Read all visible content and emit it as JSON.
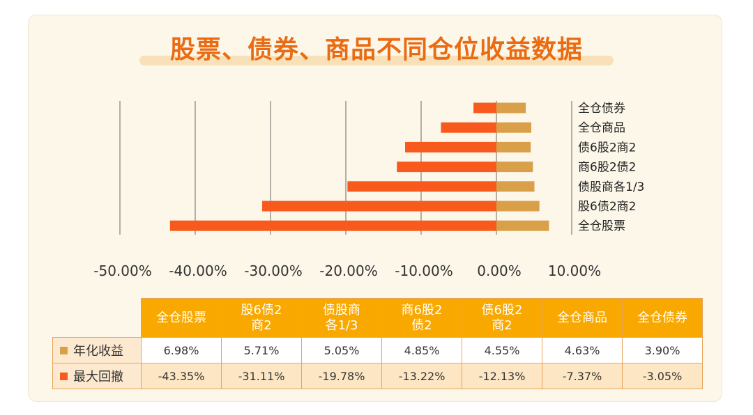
{
  "title": "股票、债券、商品不同仓位收益数据",
  "colors": {
    "annual_return": "#d9a049",
    "max_drawdown": "#f85a1e",
    "header_bg": "#f9a800",
    "title": "#ea6b12"
  },
  "chart_data": {
    "type": "bar",
    "orientation": "horizontal",
    "categories": [
      "全仓债券",
      "全仓商品",
      "债6股2商2",
      "商6股2债2",
      "债股商各1/3",
      "股6债2商2",
      "全仓股票"
    ],
    "series": [
      {
        "name": "年化收益",
        "values": [
          3.9,
          4.63,
          4.55,
          4.85,
          5.05,
          5.71,
          6.98
        ]
      },
      {
        "name": "最大回撤",
        "values": [
          -3.05,
          -7.37,
          -12.13,
          -13.22,
          -19.78,
          -31.11,
          -43.35
        ]
      }
    ],
    "x_ticks": [
      "-50.00%",
      "-40.00%",
      "-30.00%",
      "-20.00%",
      "-10.00%",
      "0.00%",
      "10.00%"
    ],
    "x_tick_values": [
      -50,
      -40,
      -30,
      -20,
      -10,
      0,
      10
    ],
    "xlim": [
      -50,
      10
    ],
    "grid": true,
    "stacked_overlap": true
  },
  "table": {
    "headers": [
      "全仓股票",
      "股6债2\n商2",
      "债股商\n各1/3",
      "商6股2\n债2",
      "债6股2\n商2",
      "全仓商品",
      "全仓债券"
    ],
    "rows": [
      {
        "label": "年化收益",
        "values": [
          "6.98%",
          "5.71%",
          "5.05%",
          "4.85%",
          "4.55%",
          "4.63%",
          "3.90%"
        ]
      },
      {
        "label": "最大回撤",
        "values": [
          "-43.35%",
          "-31.11%",
          "-19.78%",
          "-13.22%",
          "-12.13%",
          "-7.37%",
          "-3.05%"
        ]
      }
    ]
  }
}
